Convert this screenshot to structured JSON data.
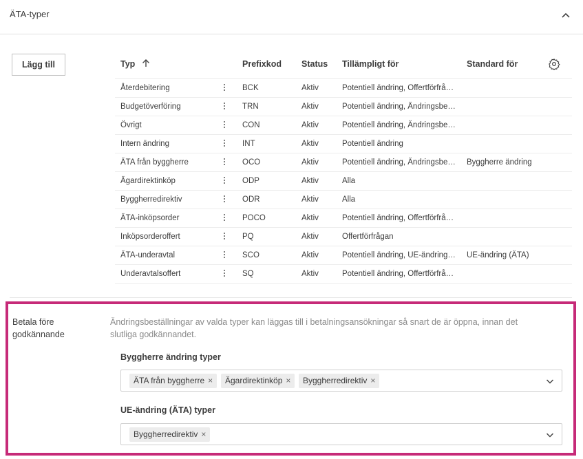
{
  "section": {
    "title": "ÄTA-typer",
    "collapse_icon": "chevron-up-icon"
  },
  "toolbar": {
    "add_label": "Lägg till"
  },
  "table": {
    "columns": {
      "type": "Typ",
      "sort_icon": "arrow-up-icon",
      "prefix": "Prefixkod",
      "status": "Status",
      "applicable": "Tillämpligt för",
      "default_for": "Standard för",
      "settings_icon": "gear-icon"
    },
    "rows": [
      {
        "type": "Återdebitering",
        "prefix": "BCK",
        "status": "Aktiv",
        "applicable": "Potentiell ändring, Offertförfrå…",
        "default_for": ""
      },
      {
        "type": "Budgetöverföring",
        "prefix": "TRN",
        "status": "Aktiv",
        "applicable": "Potentiell ändring, Ändringsbe…",
        "default_for": ""
      },
      {
        "type": "Övrigt",
        "prefix": "CON",
        "status": "Aktiv",
        "applicable": "Potentiell ändring, Ändringsbe…",
        "default_for": ""
      },
      {
        "type": "Intern ändring",
        "prefix": "INT",
        "status": "Aktiv",
        "applicable": "Potentiell ändring",
        "default_for": ""
      },
      {
        "type": "ÄTA från byggherre",
        "prefix": "OCO",
        "status": "Aktiv",
        "applicable": "Potentiell ändring, Ändringsbe…",
        "default_for": "Byggherre ändring"
      },
      {
        "type": "Ägardirektinköp",
        "prefix": "ODP",
        "status": "Aktiv",
        "applicable": "Alla",
        "default_for": ""
      },
      {
        "type": "Byggherredirektiv",
        "prefix": "ODR",
        "status": "Aktiv",
        "applicable": "Alla",
        "default_for": ""
      },
      {
        "type": "ÄTA-inköpsorder",
        "prefix": "POCO",
        "status": "Aktiv",
        "applicable": "Potentiell ändring, Offertförfrå…",
        "default_for": ""
      },
      {
        "type": "Inköpsorderoffert",
        "prefix": "PQ",
        "status": "Aktiv",
        "applicable": "Offertförfrågan",
        "default_for": ""
      },
      {
        "type": "ÄTA-underavtal",
        "prefix": "SCO",
        "status": "Aktiv",
        "applicable": "Potentiell ändring, UE-ändring…",
        "default_for": "UE-ändring (ÄTA)"
      },
      {
        "type": "Underavtalsoffert",
        "prefix": "SQ",
        "status": "Aktiv",
        "applicable": "Potentiell ändring, Offertförfrå…",
        "default_for": ""
      }
    ]
  },
  "pay_before_approval": {
    "label": "Betala före godkännande",
    "description": "Ändringsbeställningar av valda typer kan läggas till i betalningsansökningar så snart de är öppna, innan det slutliga godkännandet.",
    "highlight_color": "#c62a78",
    "fields": [
      {
        "label": "Byggherre ändring typer",
        "chips": [
          "ÄTA från byggherre",
          "Ägardirektinköp",
          "Byggherredirektiv"
        ]
      },
      {
        "label": "UE-ändring (ÄTA) typer",
        "chips": [
          "Byggherredirektiv"
        ]
      }
    ],
    "remove_glyph": "×"
  }
}
